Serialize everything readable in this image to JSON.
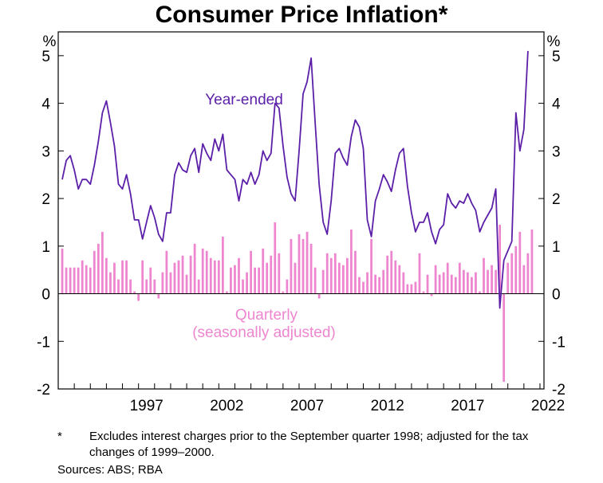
{
  "title": "Consumer Price Inflation*",
  "footnote": {
    "marker": "*",
    "text": "Excludes interest charges prior to the September quarter 1998; adjusted for the tax changes of 1999–2000."
  },
  "sources": "Sources: ABS; RBA",
  "chart_data": {
    "type": "line",
    "title": "Consumer Price Inflation*",
    "ylabel_left": "%",
    "ylabel_right": "%",
    "ylim": [
      -2,
      5.5
    ],
    "yticks": [
      -2,
      -1,
      0,
      1,
      2,
      3,
      4,
      5
    ],
    "xlim": [
      1992.0,
      2022.25
    ],
    "xticks": [
      1997,
      2002,
      2007,
      2012,
      2017,
      2022
    ],
    "grid": false,
    "colors": {
      "year_ended": "#5b1fa8",
      "quarterly": "#ee86cf"
    },
    "annotations": {
      "year_ended": "Year-ended",
      "quarterly": "Quarterly",
      "quarterly_sub": "(seasonally adjusted)"
    },
    "series": [
      {
        "name": "Year-ended",
        "type": "line",
        "start": 1992.25,
        "step": 0.25,
        "values": [
          2.4,
          2.8,
          2.9,
          2.6,
          2.2,
          2.4,
          2.4,
          2.3,
          2.7,
          3.2,
          3.8,
          4.05,
          3.6,
          3.1,
          2.3,
          2.2,
          2.5,
          2.1,
          1.55,
          1.55,
          1.15,
          1.5,
          1.85,
          1.6,
          1.25,
          1.1,
          1.7,
          1.7,
          2.5,
          2.75,
          2.6,
          2.55,
          2.9,
          3.05,
          2.55,
          3.15,
          2.95,
          2.8,
          3.25,
          3.0,
          3.35,
          2.6,
          2.5,
          2.4,
          1.95,
          2.4,
          2.3,
          2.55,
          2.3,
          2.5,
          3.0,
          2.8,
          2.95,
          4.0,
          3.9,
          3.1,
          2.45,
          2.1,
          1.95,
          3.0,
          4.2,
          4.45,
          4.95,
          3.6,
          2.3,
          1.5,
          1.25,
          1.95,
          2.95,
          3.05,
          2.85,
          2.7,
          3.3,
          3.65,
          3.5,
          3.05,
          1.55,
          1.2,
          1.95,
          2.2,
          2.5,
          2.35,
          2.15,
          2.6,
          2.95,
          3.05,
          2.25,
          1.7,
          1.3,
          1.5,
          1.5,
          1.7,
          1.3,
          1.05,
          1.35,
          1.45,
          2.1,
          1.9,
          1.8,
          1.95,
          1.9,
          2.1,
          1.9,
          1.75,
          1.3,
          1.5,
          1.65,
          1.8,
          2.2,
          -0.3,
          0.7,
          0.9,
          1.1,
          3.8,
          3.0,
          3.45,
          5.1
        ]
      },
      {
        "name": "Quarterly",
        "type": "bar",
        "start": 1992.25,
        "step": 0.25,
        "values": [
          0.95,
          0.55,
          0.55,
          0.55,
          0.55,
          0.7,
          0.6,
          0.55,
          0.9,
          1.05,
          1.3,
          0.75,
          0.45,
          0.65,
          0.3,
          0.7,
          0.7,
          0.3,
          0.05,
          -0.15,
          0.7,
          0.3,
          0.55,
          0.3,
          -0.1,
          0.45,
          0.9,
          0.45,
          0.65,
          0.7,
          0.8,
          0.4,
          0.8,
          1.05,
          0.3,
          0.95,
          0.9,
          0.75,
          0.7,
          0.7,
          1.2,
          0.05,
          0.55,
          0.6,
          0.75,
          0.3,
          0.45,
          0.9,
          0.55,
          0.55,
          0.95,
          0.65,
          0.8,
          1.5,
          0.85,
          0.05,
          0.3,
          1.15,
          0.65,
          1.25,
          1.15,
          1.3,
          1.05,
          0.55,
          -0.1,
          0.5,
          0.85,
          0.75,
          0.85,
          0.65,
          0.6,
          0.75,
          1.35,
          0.9,
          0.35,
          0.25,
          0.45,
          1.15,
          0.4,
          0.35,
          0.5,
          0.8,
          0.9,
          0.7,
          0.6,
          0.45,
          0.2,
          0.2,
          0.25,
          0.85,
          0.05,
          0.4,
          -0.05,
          0.6,
          0.4,
          0.45,
          0.65,
          0.4,
          0.35,
          0.65,
          0.5,
          0.45,
          0.35,
          0.45,
          0.05,
          0.75,
          0.5,
          0.6,
          0.5,
          1.45,
          -1.85,
          0.65,
          0.85,
          1.0,
          1.3,
          0.6,
          0.85,
          1.35
        ]
      }
    ]
  }
}
